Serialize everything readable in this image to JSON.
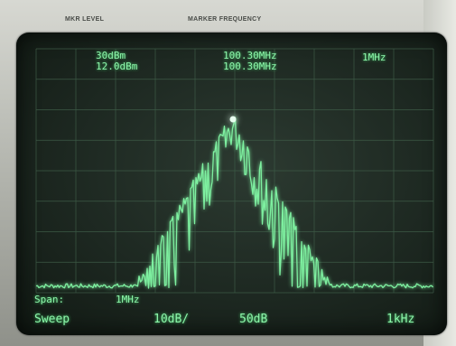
{
  "bezel": {
    "mkr_level_label": "MKR LEVEL",
    "marker_frequency_label": "MARKER FREQUENCY"
  },
  "display": {
    "reference_level": "30dBm",
    "marker_level": "12.0dBm",
    "center_frequency": "100.30MHz",
    "marker_frequency": "100.30MHz",
    "resolution_bandwidth": "1MHz",
    "span_label": "Span:",
    "span_value": "1MHz",
    "sweep_label": "Sweep",
    "scale": "10dB/",
    "attenuation": "50dB",
    "video_bandwidth": "1kHz"
  },
  "colors": {
    "trace": "#7ef0a0",
    "graticule": "#3d5a46",
    "marker": "#e8fff0"
  }
}
